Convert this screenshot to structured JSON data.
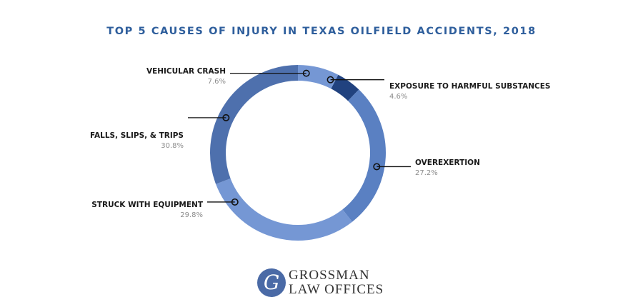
{
  "chart_data": {
    "type": "donut",
    "title": "TOP 5 CAUSES OF INJURY IN TEXAS OILFIELD ACCIDENTS, 2018",
    "slices": [
      {
        "label": "VEHICULAR CRASH",
        "value": 7.6,
        "value_label": "7.6%",
        "color": "#7597d4"
      },
      {
        "label": "EXPOSURE TO HARMFUL SUBSTANCES",
        "value": 4.6,
        "value_label": "4.6%",
        "color": "#21427f"
      },
      {
        "label": "OVEREXERTION",
        "value": 27.2,
        "value_label": "27.2%",
        "color": "#5a80c2"
      },
      {
        "label": "STRUCK WITH EQUIPMENT",
        "value": 29.8,
        "value_label": "29.8%",
        "color": "#7597d4"
      },
      {
        "label": "FALLS, SLIPS, & TRIPS",
        "value": 30.8,
        "value_label": "30.8%",
        "color": "#4e70ad"
      }
    ],
    "start_angle_deg": 0,
    "direction": "clockwise",
    "legend": "callout-labels"
  },
  "logo": {
    "seal_letter": "G",
    "line1": "GROSSMAN",
    "line2": "LAW OFFICES"
  }
}
